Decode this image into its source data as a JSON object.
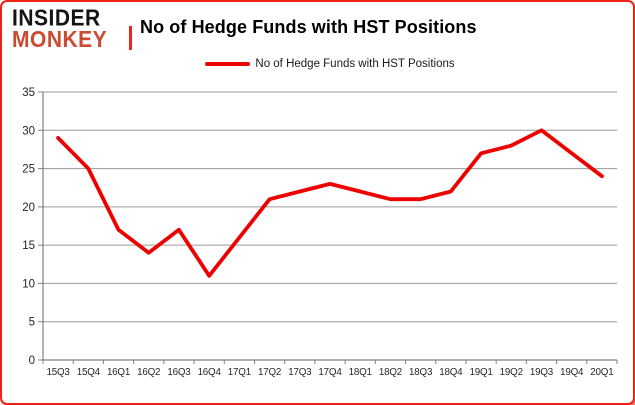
{
  "brand": {
    "line1": "INSIDER",
    "line2": "MONKEY"
  },
  "header": {
    "title": "No of Hedge Funds with HST Positions"
  },
  "legend": {
    "label": "No of Hedge Funds with HST Positions"
  },
  "colors": {
    "line": "#ee0000",
    "brand_black": "#141414",
    "brand_red": "#cd4a31",
    "border_red": "#ee2418",
    "grid": "#9a9a9a",
    "axis": "#808080",
    "axis_text": "#262626"
  },
  "chart_data": {
    "type": "line",
    "title": "No of Hedge Funds with HST Positions",
    "series_name": "No of Hedge Funds with HST Positions",
    "categories": [
      "15Q3",
      "15Q4",
      "16Q1",
      "16Q2",
      "16Q3",
      "16Q4",
      "17Q1",
      "17Q2",
      "17Q3",
      "17Q4",
      "18Q1",
      "18Q2",
      "18Q3",
      "18Q4",
      "19Q1",
      "19Q2",
      "19Q3",
      "19Q4",
      "20Q1"
    ],
    "values": [
      29,
      25,
      17,
      14,
      17,
      11,
      16,
      21,
      22,
      23,
      22,
      21,
      21,
      22,
      27,
      28,
      30,
      27,
      24
    ],
    "xlabel": "",
    "ylabel": "",
    "ylim": [
      0,
      35
    ],
    "ytick_step": 5,
    "yticks": [
      0,
      5,
      10,
      15,
      20,
      25,
      30,
      35
    ],
    "grid": "horizontal",
    "legend_position": "top-center",
    "line_color": "#ee0000"
  }
}
